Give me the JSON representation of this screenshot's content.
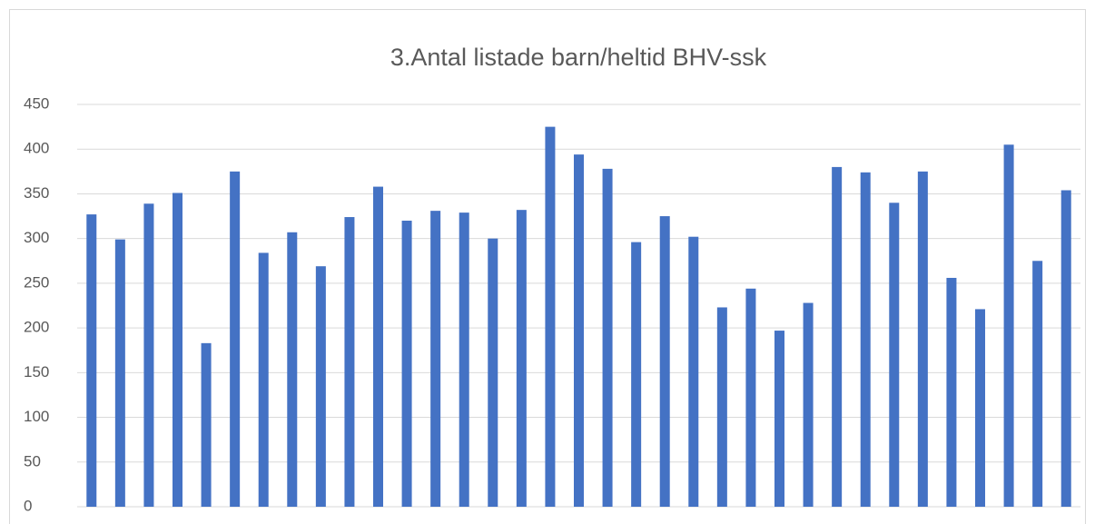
{
  "chart_data": {
    "type": "bar",
    "title": "3.Antal listade barn/heltid BHV-ssk",
    "categories": [
      null,
      null,
      null,
      null,
      null,
      null,
      null,
      null,
      null,
      null,
      null,
      null,
      null,
      null,
      null,
      null,
      null,
      null,
      null,
      null,
      null,
      null,
      null,
      null,
      null,
      null,
      null,
      null,
      null,
      null,
      null,
      null,
      null,
      null,
      null
    ],
    "values": [
      327,
      299,
      339,
      351,
      183,
      375,
      284,
      307,
      269,
      324,
      358,
      320,
      331,
      329,
      300,
      332,
      425,
      394,
      378,
      296,
      325,
      302,
      223,
      244,
      197,
      228,
      380,
      374,
      340,
      375,
      256,
      221,
      405,
      275,
      354
    ],
    "color": "#4472c4",
    "ylim": [
      0,
      450
    ],
    "yticks": [
      0,
      50,
      100,
      150,
      200,
      250,
      300,
      350,
      400,
      450
    ],
    "grid": true
  }
}
